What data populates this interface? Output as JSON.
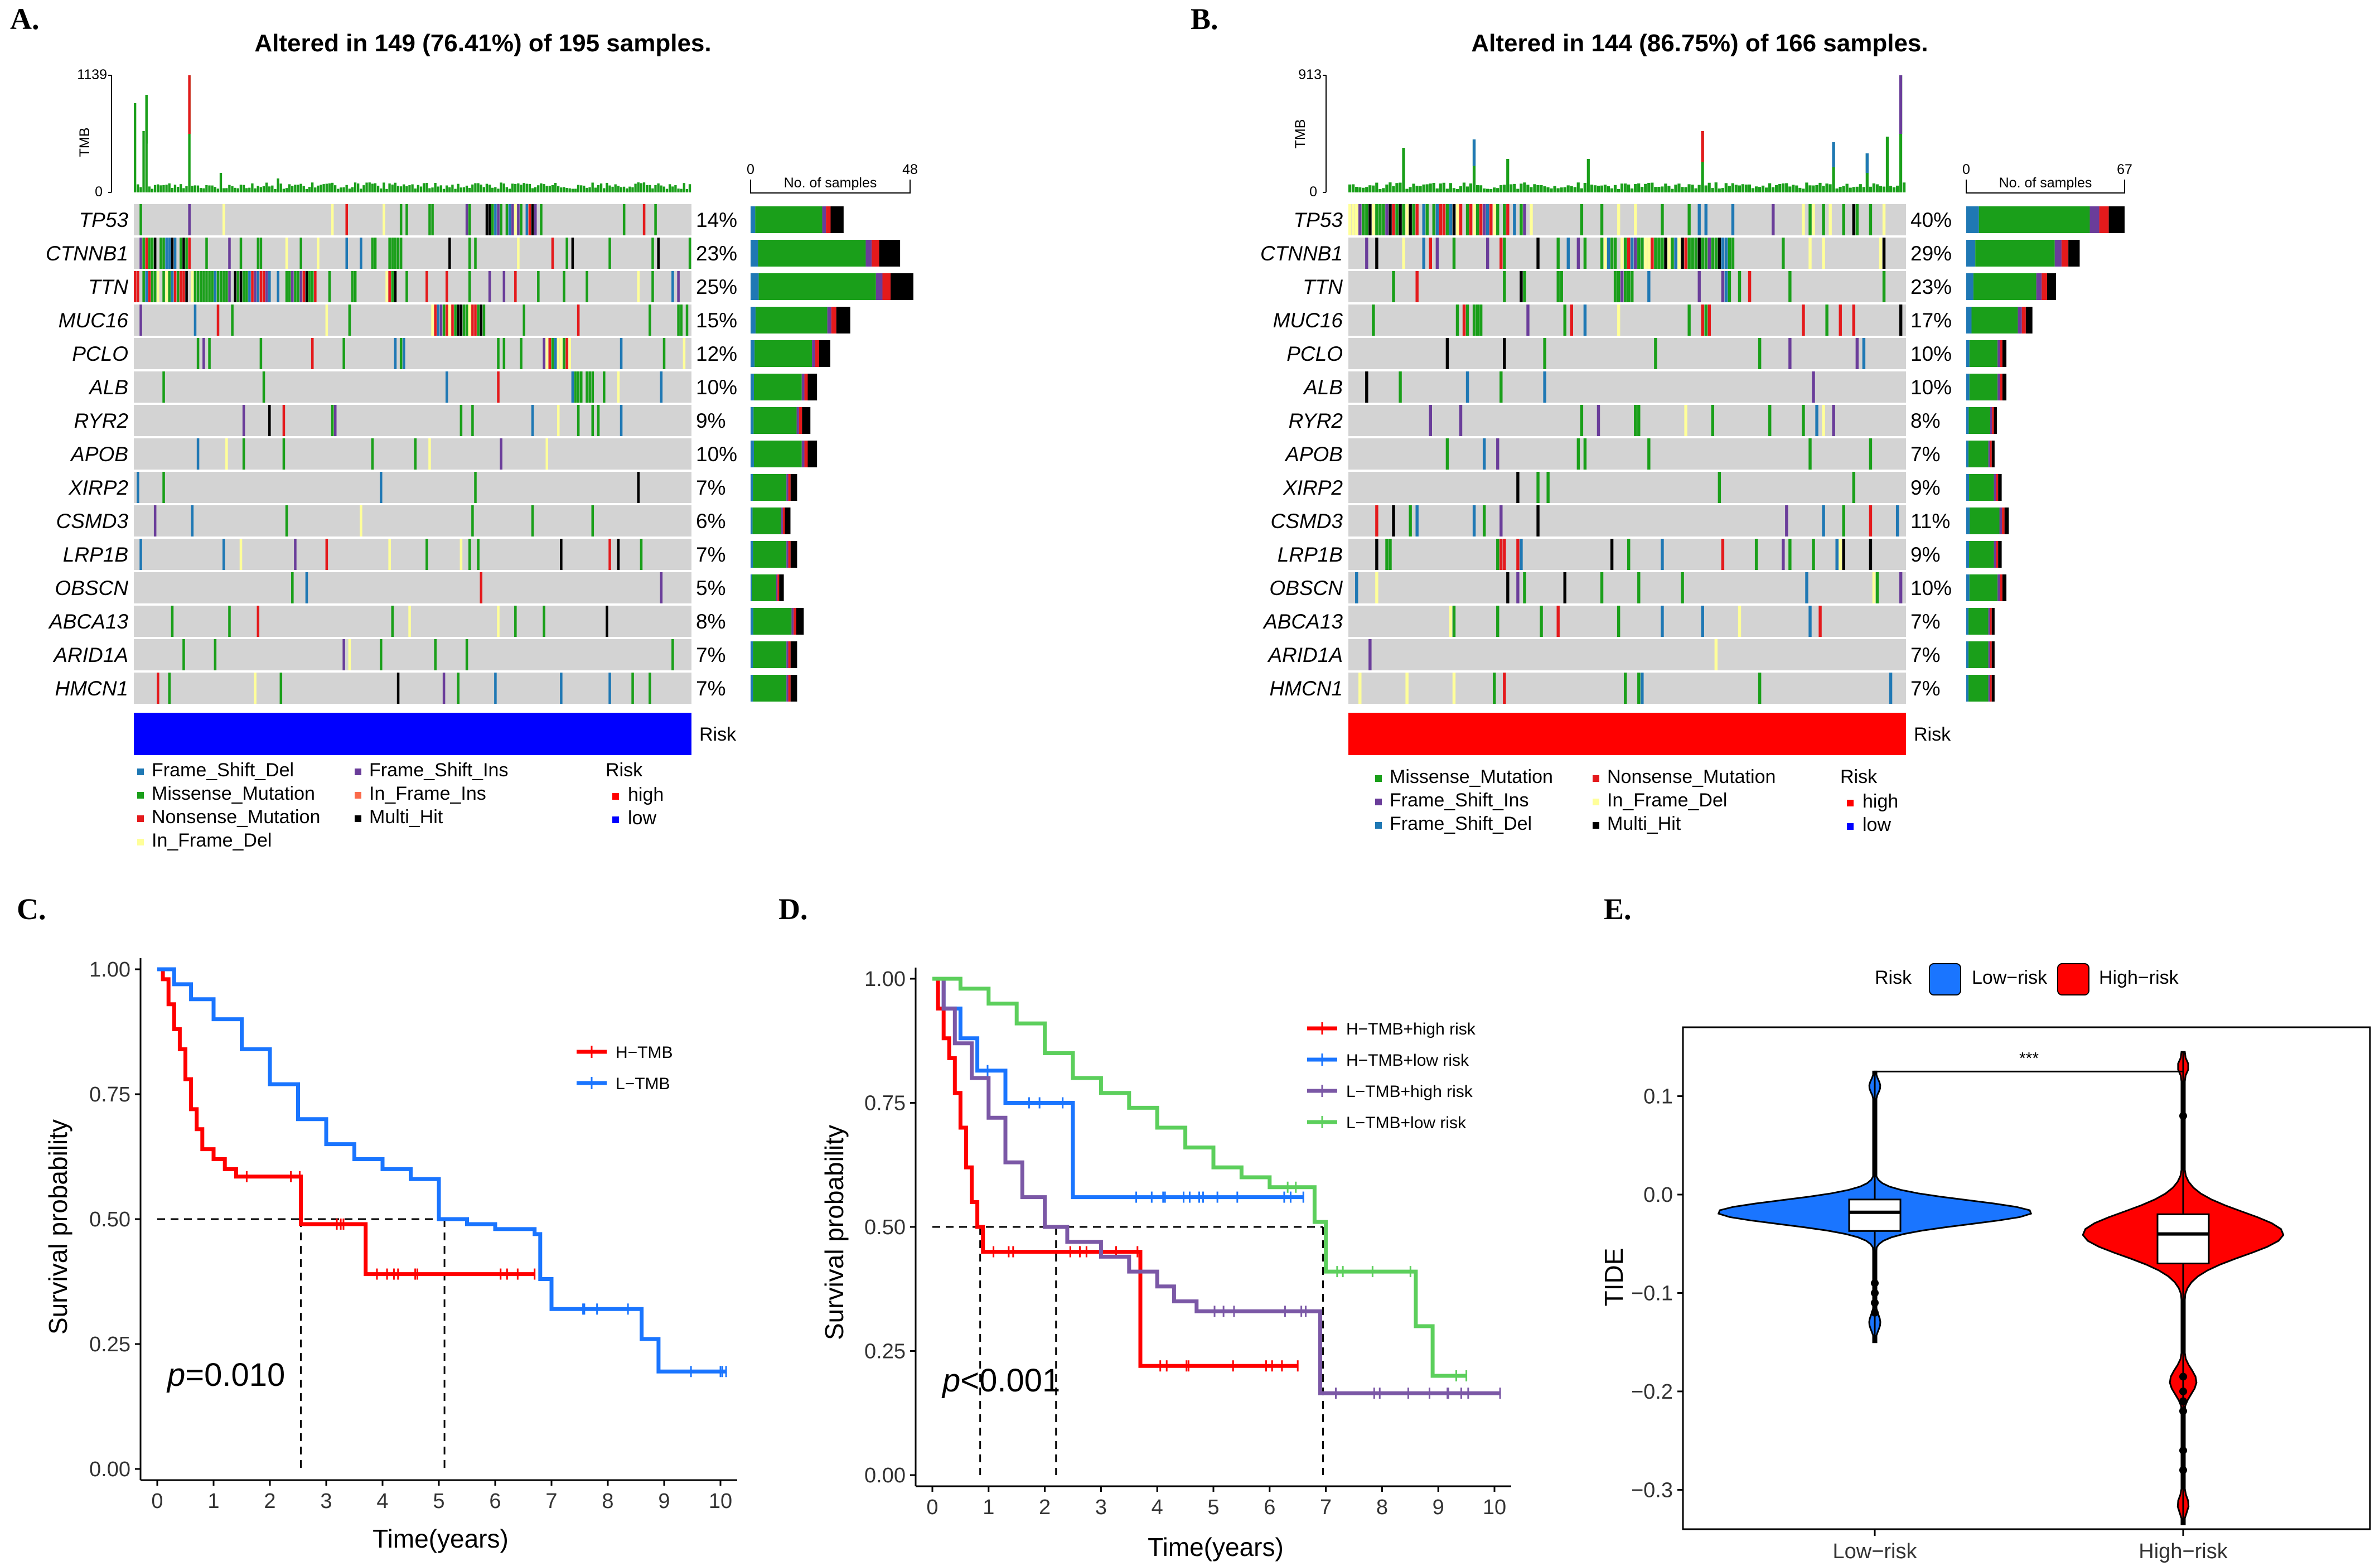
{
  "colors": {
    "Frame_Shift_Del": "#1f78b4",
    "Missense_Mutation": "#1a9f1a",
    "Nonsense_Mutation": "#e41a1c",
    "In_Frame_Del": "#ffff99",
    "Frame_Shift_Ins": "#6a3d9a",
    "In_Frame_Ins": "#fb6a4a",
    "Multi_Hit": "#000000",
    "high": "#ff0000",
    "low": "#0000ff",
    "grid": "#d3d3d3",
    "H_TMB": "#ff0000",
    "L_TMB": "#1a75ff",
    "H_TMB_high": "#ff0000",
    "H_TMB_low": "#1a75ff",
    "L_TMB_high": "#7b58a6",
    "L_TMB_low": "#5ccf5c",
    "low_risk": "#1a75ff",
    "high_risk": "#ff0000"
  },
  "panels": {
    "A": "A.",
    "B": "B.",
    "C": "C.",
    "D": "D.",
    "E": "E."
  },
  "chart_data": [
    {
      "type": "oncoplot",
      "panel": "A",
      "title": "Altered in 149 (76.41%) of 195 samples.",
      "n_samples": 195,
      "tmb_label": "TMB",
      "tmb_max": "1139",
      "tmb_min": "0",
      "bar_axis_min": "0",
      "bar_axis_max": "48",
      "bar_axis_label": "No. of samples",
      "risk_label": "Risk",
      "risk_group": "low",
      "genes": [
        "TP53",
        "CTNNB1",
        "TTN",
        "MUC16",
        "PCLO",
        "ALB",
        "RYR2",
        "APOB",
        "XIRP2",
        "CSMD3",
        "LRP1B",
        "OBSCN",
        "ABCA13",
        "ARID1A",
        "HMCN1"
      ],
      "percents": [
        "14%",
        "23%",
        "25%",
        "15%",
        "12%",
        "10%",
        "9%",
        "10%",
        "7%",
        "6%",
        "7%",
        "5%",
        "8%",
        "7%",
        "7%"
      ],
      "counts": [
        28,
        45,
        49,
        30,
        24,
        20,
        18,
        20,
        14,
        12,
        14,
        10,
        16,
        14,
        14
      ],
      "legend_title": "Risk",
      "legend_items": [
        "Frame_Shift_Del",
        "Missense_Mutation",
        "Nonsense_Mutation",
        "In_Frame_Del",
        "Frame_Shift_Ins",
        "In_Frame_Ins",
        "Multi_Hit"
      ],
      "legend_risk": [
        "high",
        "low"
      ]
    },
    {
      "type": "oncoplot",
      "panel": "B",
      "title": "Altered in 144 (86.75%) of 166 samples.",
      "n_samples": 166,
      "tmb_label": "TMB",
      "tmb_max": "913",
      "tmb_min": "0",
      "bar_axis_min": "0",
      "bar_axis_max": "67",
      "bar_axis_label": "No. of samples",
      "risk_label": "Risk",
      "risk_group": "high",
      "genes": [
        "TP53",
        "CTNNB1",
        "TTN",
        "MUC16",
        "PCLO",
        "ALB",
        "RYR2",
        "APOB",
        "XIRP2",
        "CSMD3",
        "LRP1B",
        "OBSCN",
        "ABCA13",
        "ARID1A",
        "HMCN1"
      ],
      "percents": [
        "40%",
        "29%",
        "23%",
        "17%",
        "10%",
        "10%",
        "8%",
        "7%",
        "9%",
        "11%",
        "9%",
        "10%",
        "7%",
        "7%",
        "7%"
      ],
      "counts": [
        67,
        48,
        38,
        28,
        17,
        17,
        13,
        12,
        15,
        18,
        15,
        17,
        12,
        12,
        12
      ],
      "legend_title": "Risk",
      "legend_items": [
        "Missense_Mutation",
        "Frame_Shift_Ins",
        "Frame_Shift_Del",
        "Nonsense_Mutation",
        "In_Frame_Del",
        "Multi_Hit"
      ],
      "legend_risk": [
        "high",
        "low"
      ]
    },
    {
      "type": "survival",
      "panel": "C",
      "xlabel": "Time(years)",
      "ylabel": "Survival probability",
      "xlim": [
        0,
        10
      ],
      "ylim": [
        0,
        1
      ],
      "xticks": [
        0,
        1,
        2,
        3,
        4,
        5,
        6,
        7,
        8,
        9,
        10
      ],
      "yticks": [
        "0.00",
        "0.25",
        "0.50",
        "0.75",
        "1.00"
      ],
      "p_prefix": "p",
      "p_value": "=0.010",
      "medians": [
        2.55,
        5.1
      ],
      "series": [
        {
          "name": "H−TMB",
          "color_key": "H_TMB",
          "points": [
            [
              0,
              1
            ],
            [
              0.1,
              0.98
            ],
            [
              0.2,
              0.93
            ],
            [
              0.3,
              0.88
            ],
            [
              0.4,
              0.84
            ],
            [
              0.5,
              0.78
            ],
            [
              0.6,
              0.72
            ],
            [
              0.7,
              0.68
            ],
            [
              0.8,
              0.64
            ],
            [
              1.0,
              0.62
            ],
            [
              1.2,
              0.6
            ],
            [
              1.4,
              0.585
            ],
            [
              2.55,
              0.585
            ],
            [
              2.55,
              0.49
            ],
            [
              3.7,
              0.49
            ],
            [
              3.7,
              0.39
            ],
            [
              6.7,
              0.39
            ]
          ]
        },
        {
          "name": "L−TMB",
          "color_key": "L_TMB",
          "points": [
            [
              0,
              1
            ],
            [
              0.3,
              0.97
            ],
            [
              0.6,
              0.94
            ],
            [
              1.0,
              0.9
            ],
            [
              1.5,
              0.84
            ],
            [
              2.0,
              0.77
            ],
            [
              2.5,
              0.7
            ],
            [
              3.0,
              0.65
            ],
            [
              3.5,
              0.62
            ],
            [
              4.0,
              0.6
            ],
            [
              4.5,
              0.58
            ],
            [
              5.0,
              0.5
            ],
            [
              5.5,
              0.49
            ],
            [
              6.0,
              0.48
            ],
            [
              6.7,
              0.47
            ],
            [
              6.8,
              0.38
            ],
            [
              7.0,
              0.32
            ],
            [
              8.6,
              0.32
            ],
            [
              8.6,
              0.26
            ],
            [
              8.9,
              0.26
            ],
            [
              8.9,
              0.195
            ],
            [
              10.1,
              0.195
            ]
          ]
        }
      ]
    },
    {
      "type": "survival",
      "panel": "D",
      "xlabel": "Time(years)",
      "ylabel": "Survival probability",
      "xlim": [
        0,
        10
      ],
      "ylim": [
        0,
        1
      ],
      "xticks": [
        0,
        1,
        2,
        3,
        4,
        5,
        6,
        7,
        8,
        9,
        10
      ],
      "yticks": [
        "0.00",
        "0.25",
        "0.50",
        "0.75",
        "1.00"
      ],
      "p_prefix": "p",
      "p_value": "<0.001",
      "medians": [
        0.85,
        2.2,
        6.95
      ],
      "series": [
        {
          "name": "H−TMB+high risk",
          "color_key": "H_TMB_high",
          "points": [
            [
              0,
              1
            ],
            [
              0.1,
              0.94
            ],
            [
              0.2,
              0.88
            ],
            [
              0.3,
              0.84
            ],
            [
              0.4,
              0.77
            ],
            [
              0.5,
              0.7
            ],
            [
              0.6,
              0.62
            ],
            [
              0.7,
              0.55
            ],
            [
              0.8,
              0.5
            ],
            [
              0.9,
              0.45
            ],
            [
              3.7,
              0.45
            ],
            [
              3.7,
              0.22
            ],
            [
              6.5,
              0.22
            ]
          ]
        },
        {
          "name": "H−TMB+low risk",
          "color_key": "H_TMB_low",
          "points": [
            [
              0,
              1
            ],
            [
              0.2,
              0.94
            ],
            [
              0.5,
              0.88
            ],
            [
              0.8,
              0.815
            ],
            [
              1.3,
              0.815
            ],
            [
              1.3,
              0.75
            ],
            [
              2.5,
              0.75
            ],
            [
              2.5,
              0.56
            ],
            [
              6.6,
              0.56
            ]
          ]
        },
        {
          "name": "L−TMB+high risk",
          "color_key": "L_TMB_high",
          "points": [
            [
              0,
              1
            ],
            [
              0.2,
              0.94
            ],
            [
              0.4,
              0.87
            ],
            [
              0.7,
              0.8
            ],
            [
              1.0,
              0.72
            ],
            [
              1.3,
              0.63
            ],
            [
              1.6,
              0.56
            ],
            [
              2.0,
              0.5
            ],
            [
              2.4,
              0.47
            ],
            [
              3.0,
              0.44
            ],
            [
              3.5,
              0.41
            ],
            [
              4.0,
              0.38
            ],
            [
              4.3,
              0.35
            ],
            [
              4.7,
              0.33
            ],
            [
              6.9,
              0.33
            ],
            [
              6.9,
              0.165
            ],
            [
              10.1,
              0.165
            ]
          ]
        },
        {
          "name": "L−TMB+low risk",
          "color_key": "L_TMB_low",
          "points": [
            [
              0,
              1
            ],
            [
              0.5,
              0.98
            ],
            [
              1.0,
              0.95
            ],
            [
              1.5,
              0.91
            ],
            [
              2.0,
              0.85
            ],
            [
              2.5,
              0.8
            ],
            [
              3.0,
              0.77
            ],
            [
              3.5,
              0.74
            ],
            [
              4.0,
              0.7
            ],
            [
              4.5,
              0.66
            ],
            [
              5.0,
              0.62
            ],
            [
              5.5,
              0.6
            ],
            [
              6.0,
              0.58
            ],
            [
              6.8,
              0.58
            ],
            [
              6.8,
              0.51
            ],
            [
              7.0,
              0.41
            ],
            [
              8.6,
              0.41
            ],
            [
              8.6,
              0.3
            ],
            [
              8.9,
              0.3
            ],
            [
              8.9,
              0.2
            ],
            [
              9.5,
              0.2
            ]
          ]
        }
      ]
    },
    {
      "type": "violin",
      "panel": "E",
      "ylabel": "TIDE",
      "legend_title": "Risk",
      "categories": [
        "Low−risk",
        "High−risk"
      ],
      "legend_labels": [
        "Low−risk",
        "High−risk"
      ],
      "ylim": [
        -0.34,
        0.17
      ],
      "yticks": [
        "0.1",
        "0.0",
        "−0.1",
        "−0.2",
        "−0.3"
      ],
      "ytick_values": [
        0.1,
        0.0,
        -0.1,
        -0.2,
        -0.3
      ],
      "significance": "***",
      "boxes": [
        {
          "name": "Low−risk",
          "median": -0.018,
          "q1": -0.037,
          "q3": -0.005,
          "whisker_low": -0.085,
          "whisker_high": 0.045,
          "min": -0.15,
          "max": 0.125
        },
        {
          "name": "High−risk",
          "median": -0.04,
          "q1": -0.07,
          "q3": -0.02,
          "whisker_low": -0.145,
          "whisker_high": 0.05,
          "min": -0.335,
          "max": 0.145
        }
      ]
    }
  ]
}
